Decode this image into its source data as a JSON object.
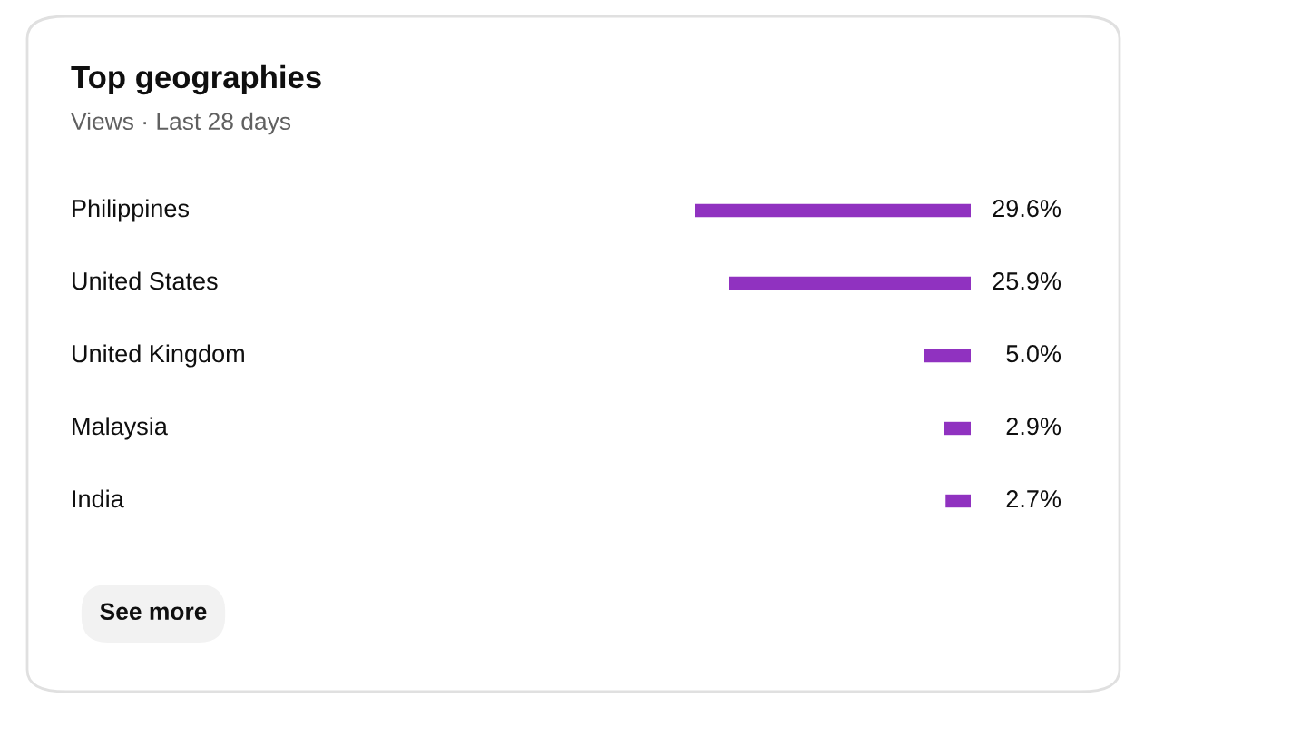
{
  "chart_data": {
    "type": "bar",
    "orientation": "horizontal",
    "title": "Top geographies",
    "subtitle": "Views · Last 28 days",
    "categories": [
      "Philippines",
      "United States",
      "United Kingdom",
      "Malaysia",
      "India"
    ],
    "values": [
      29.6,
      25.9,
      5.0,
      2.9,
      2.7
    ],
    "value_labels": [
      "29.6%",
      "25.9%",
      "5.0%",
      "2.9%",
      "2.7%"
    ],
    "color": "#9032c0",
    "annotations": [
      "See more"
    ]
  }
}
